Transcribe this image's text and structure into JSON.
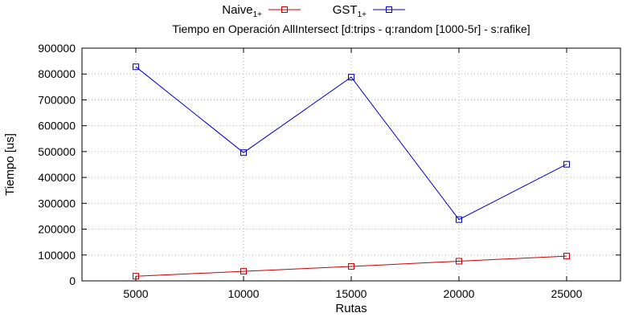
{
  "chart_data": {
    "type": "line",
    "title": "Tiempo en Operación AllIntersect [d:trips - q:random [1000-5r] - s:rafike]",
    "xlabel": "Rutas",
    "ylabel": "Tiempo [us]",
    "x": [
      5000,
      10000,
      15000,
      20000,
      25000
    ],
    "xlim": [
      2500,
      27500
    ],
    "ylim": [
      0,
      900000
    ],
    "xticks": [
      5000,
      10000,
      15000,
      20000,
      25000
    ],
    "yticks": [
      0,
      100000,
      200000,
      300000,
      400000,
      500000,
      600000,
      700000,
      800000,
      900000
    ],
    "grid": true,
    "legend_position": "top",
    "series": [
      {
        "name": "Naive",
        "name_sub": "1+",
        "color": "#cc0000",
        "marker": "open-square",
        "values": [
          18000,
          37000,
          56000,
          76000,
          96000
        ]
      },
      {
        "name": "GST",
        "name_sub": "1+",
        "color": "#0000cc",
        "marker": "open-square",
        "values": [
          828000,
          496000,
          788000,
          237000,
          451000
        ]
      }
    ]
  }
}
